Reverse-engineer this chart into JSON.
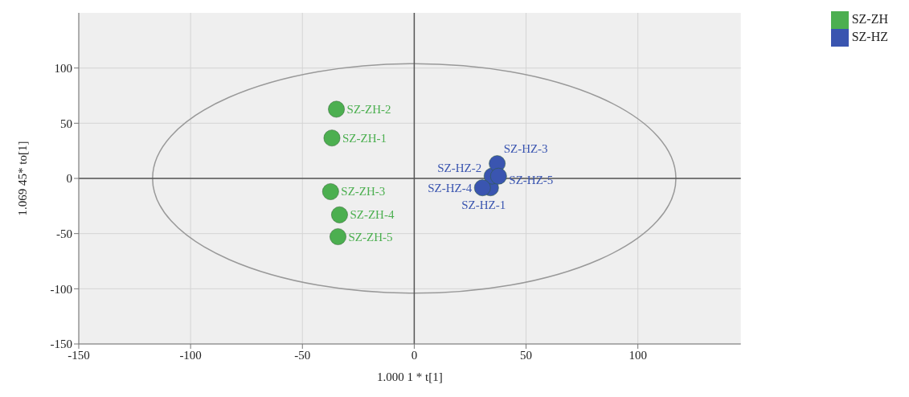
{
  "chart_data": {
    "type": "scatter",
    "xlabel": "1.000 1 * t[1]",
    "ylabel": "1.069 45* to[1]",
    "xlim": [
      -150,
      146
    ],
    "ylim": [
      -150,
      150
    ],
    "xticks": [
      -150,
      -100,
      -50,
      0,
      50,
      100
    ],
    "yticks": [
      -150,
      -100,
      -50,
      0,
      50,
      100
    ],
    "grid": true,
    "legend": "top right",
    "marker": "circle",
    "series": [
      {
        "name": "SZ-ZH",
        "color": "#4caf50",
        "x": [
          -36.8,
          -34.8,
          -37.4,
          -33.4,
          -34.1
        ],
        "values": [
          36.6,
          62.7,
          -12,
          -33,
          -52.8
        ],
        "value_labels": [
          "SZ-ZH-1",
          "SZ-ZH-2",
          "SZ-ZH-3",
          "SZ-ZH-4",
          "SZ-ZH-5"
        ]
      },
      {
        "name": "SZ-HZ",
        "color": "#3a55b0",
        "x": [
          34.1,
          34.8,
          37.1,
          30.5,
          37.7
        ],
        "values": [
          -8.5,
          2.1,
          13.4,
          -8.5,
          2
        ],
        "value_labels": [
          "SZ-HZ-1",
          "SZ-HZ-2",
          "SZ-HZ-3",
          "SZ-HZ-4",
          "SZ-HZ-5"
        ]
      }
    ]
  }
}
